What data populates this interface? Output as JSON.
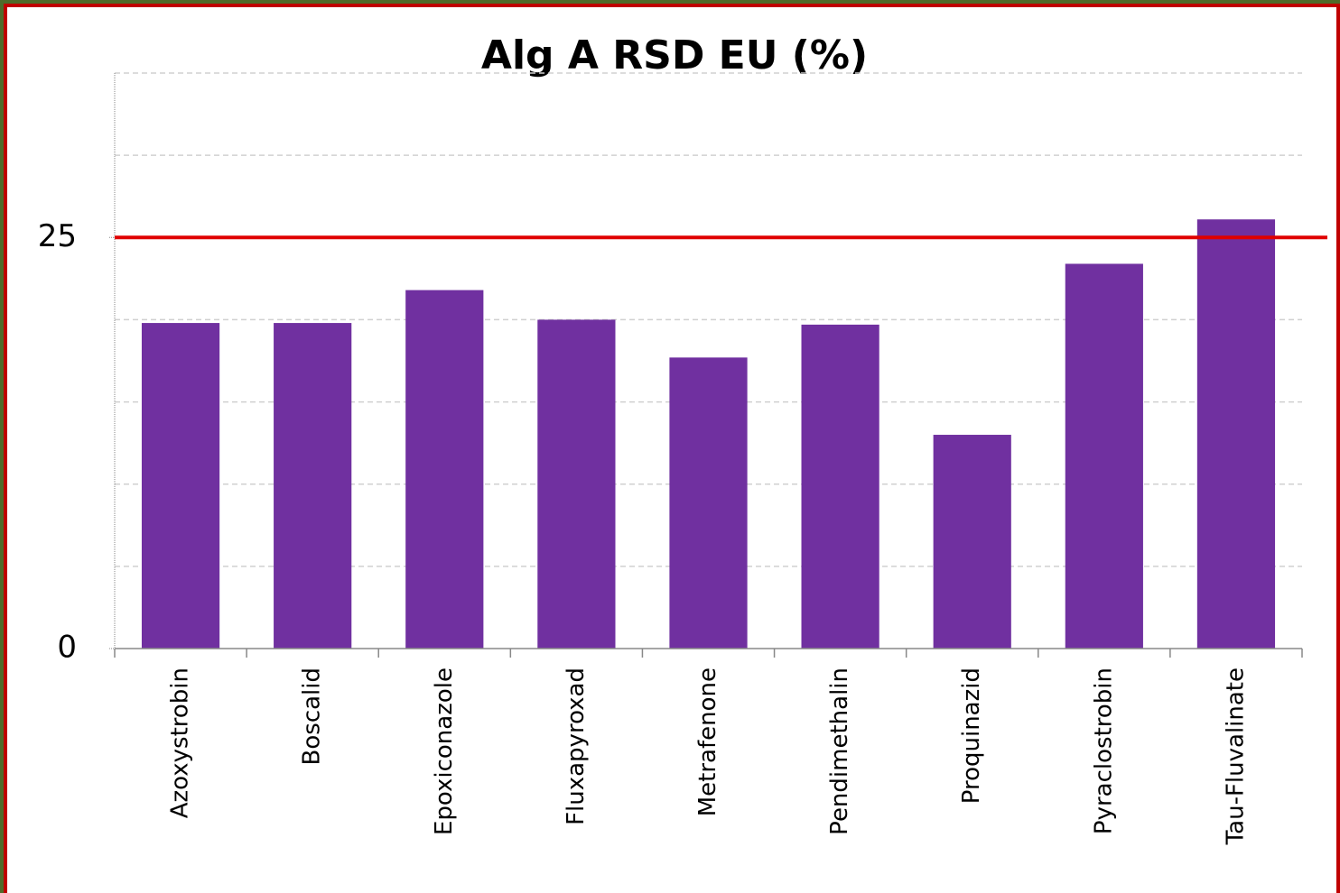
{
  "chart_data": {
    "type": "bar",
    "title": "Alg A RSD EU (%)",
    "categories": [
      "Azoxystrobin",
      "Boscalid",
      "Epoxiconazole",
      "Fluxapyroxad",
      "Metrafenone",
      "Pendimethalin",
      "Proquinazid",
      "Pyraclostrobin",
      "Tau-Fluvalinate"
    ],
    "values": [
      19.8,
      19.8,
      21.8,
      20.0,
      17.7,
      19.7,
      13.0,
      23.4,
      26.1
    ],
    "color": "#7030a0",
    "ylim": [
      0,
      35
    ],
    "yticks": [
      0,
      25
    ],
    "grid": true,
    "grid_lines": [
      5,
      10,
      15,
      20,
      30,
      35
    ],
    "reference_line": 25,
    "reference_color": "#e00000"
  }
}
